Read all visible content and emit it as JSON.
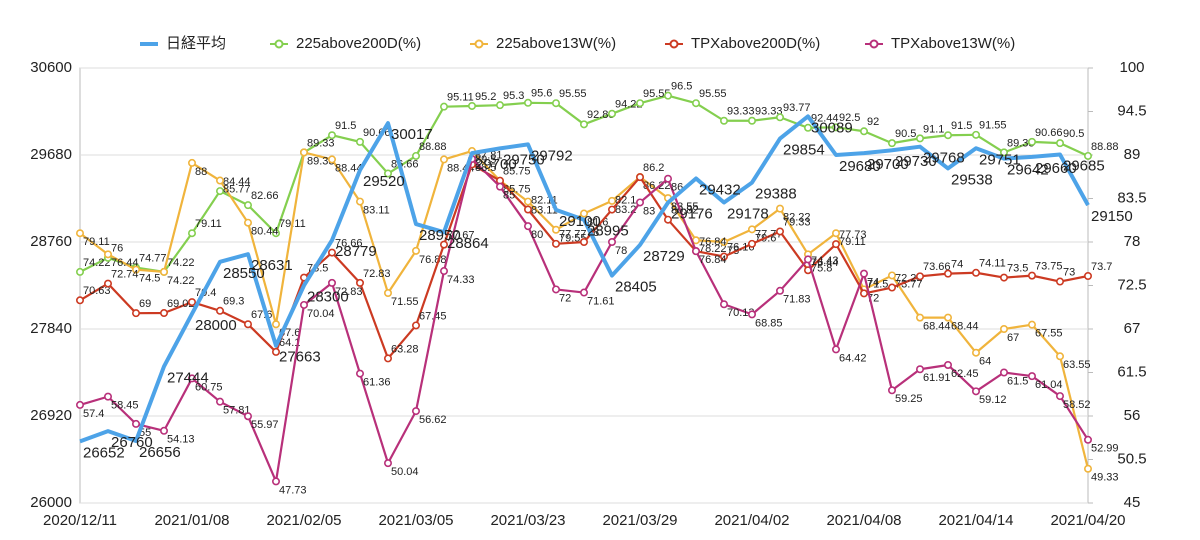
{
  "chart_data": {
    "type": "line",
    "categories": [
      "2020/12/11",
      null,
      null,
      null,
      "2021/01/08",
      null,
      null,
      null,
      "2021/02/05",
      null,
      null,
      null,
      "2021/03/05",
      null,
      null,
      null,
      "2021/03/23",
      null,
      null,
      null,
      "2021/03/29",
      null,
      null,
      null,
      "2021/04/02",
      null,
      null,
      null,
      "2021/04/08",
      null,
      null,
      null,
      "2021/04/14",
      null,
      null,
      null,
      "2021/04/20"
    ],
    "ylim": [
      26000,
      30600
    ],
    "yticks": [
      26000,
      26920,
      27840,
      28760,
      29680,
      30600
    ],
    "y2lim": [
      45,
      100
    ],
    "y2ticks": [
      45,
      50.5,
      56,
      61.5,
      67,
      72.5,
      78,
      83.5,
      89,
      94.5,
      100
    ],
    "legend": "top",
    "series": [
      {
        "name": "日経平均",
        "color": "#4da3e8",
        "values": [
          26652,
          26760,
          26656,
          27444,
          28000,
          28550,
          28631,
          27663,
          28300,
          28779,
          29520,
          30017,
          28950,
          28864,
          29700,
          29750,
          29792,
          29100,
          28995,
          28405,
          28729,
          29176,
          29432,
          29178,
          29388,
          29854,
          30089,
          29680,
          29700,
          29730,
          29768,
          29538,
          29751,
          29642,
          29660,
          29685,
          29150
        ]
      },
      {
        "name": "225above200D(%)",
        "color": "#84cf4f",
        "axis": "y2",
        "values": [
          74.22,
          76,
          74.77,
          74.22,
          79.11,
          84.44,
          82.66,
          79.11,
          89.33,
          91.5,
          90.66,
          86.66,
          88.88,
          95.11,
          95.2,
          95.3,
          95.6,
          95.55,
          92.88,
          94.22,
          95.55,
          96.5,
          95.55,
          93.33,
          93.33,
          93.77,
          92.44,
          92.5,
          92,
          90.5,
          91.1,
          91.5,
          91.55,
          89.33,
          90.66,
          90.5,
          88.88
        ]
      },
      {
        "name": "225above13W(%)",
        "color": "#f0b43c",
        "axis": "y2",
        "values": [
          79.11,
          76.44,
          74.5,
          74.22,
          88,
          85.77,
          80.44,
          67.6,
          89.33,
          88.44,
          83.11,
          71.55,
          76.88,
          88.44,
          89.5,
          85.75,
          83.11,
          79.55,
          81.6,
          83.2,
          86.22,
          83.55,
          78.22,
          78,
          79.6,
          82.22,
          76.44,
          79.11,
          72,
          73.77,
          68.44,
          68.44,
          64,
          67,
          67.55,
          63.55,
          49.33
        ]
      },
      {
        "name": "TPXabove200D(%)",
        "color": "#cc3a22",
        "axis": "y2",
        "values": [
          70.63,
          72.74,
          69,
          69.02,
          70.4,
          69.3,
          67.6,
          64.1,
          73.5,
          76.66,
          72.83,
          63.28,
          67.45,
          77.67,
          87.81,
          85.75,
          82.11,
          77.77,
          78,
          82.1,
          86.2,
          80.82,
          76.84,
          76.16,
          77.77,
          79.33,
          74.43,
          77.73,
          71.5,
          72.24,
          73.66,
          74,
          74.11,
          73.5,
          73.75,
          73,
          73.7
        ]
      },
      {
        "name": "TPXabove13W(%)",
        "color": "#b8307a",
        "axis": "y2",
        "values": [
          57.4,
          58.45,
          55,
          54.13,
          60.75,
          57.81,
          55.97,
          47.73,
          70.04,
          72.83,
          61.36,
          50.04,
          56.62,
          74.33,
          88.5,
          85,
          80,
          72,
          71.61,
          78,
          83,
          86,
          76.84,
          70.13,
          68.85,
          71.83,
          75.8,
          64.42,
          74,
          59.25,
          61.91,
          62.45,
          59.12,
          61.5,
          61.04,
          58.52,
          52.99
        ]
      }
    ]
  }
}
